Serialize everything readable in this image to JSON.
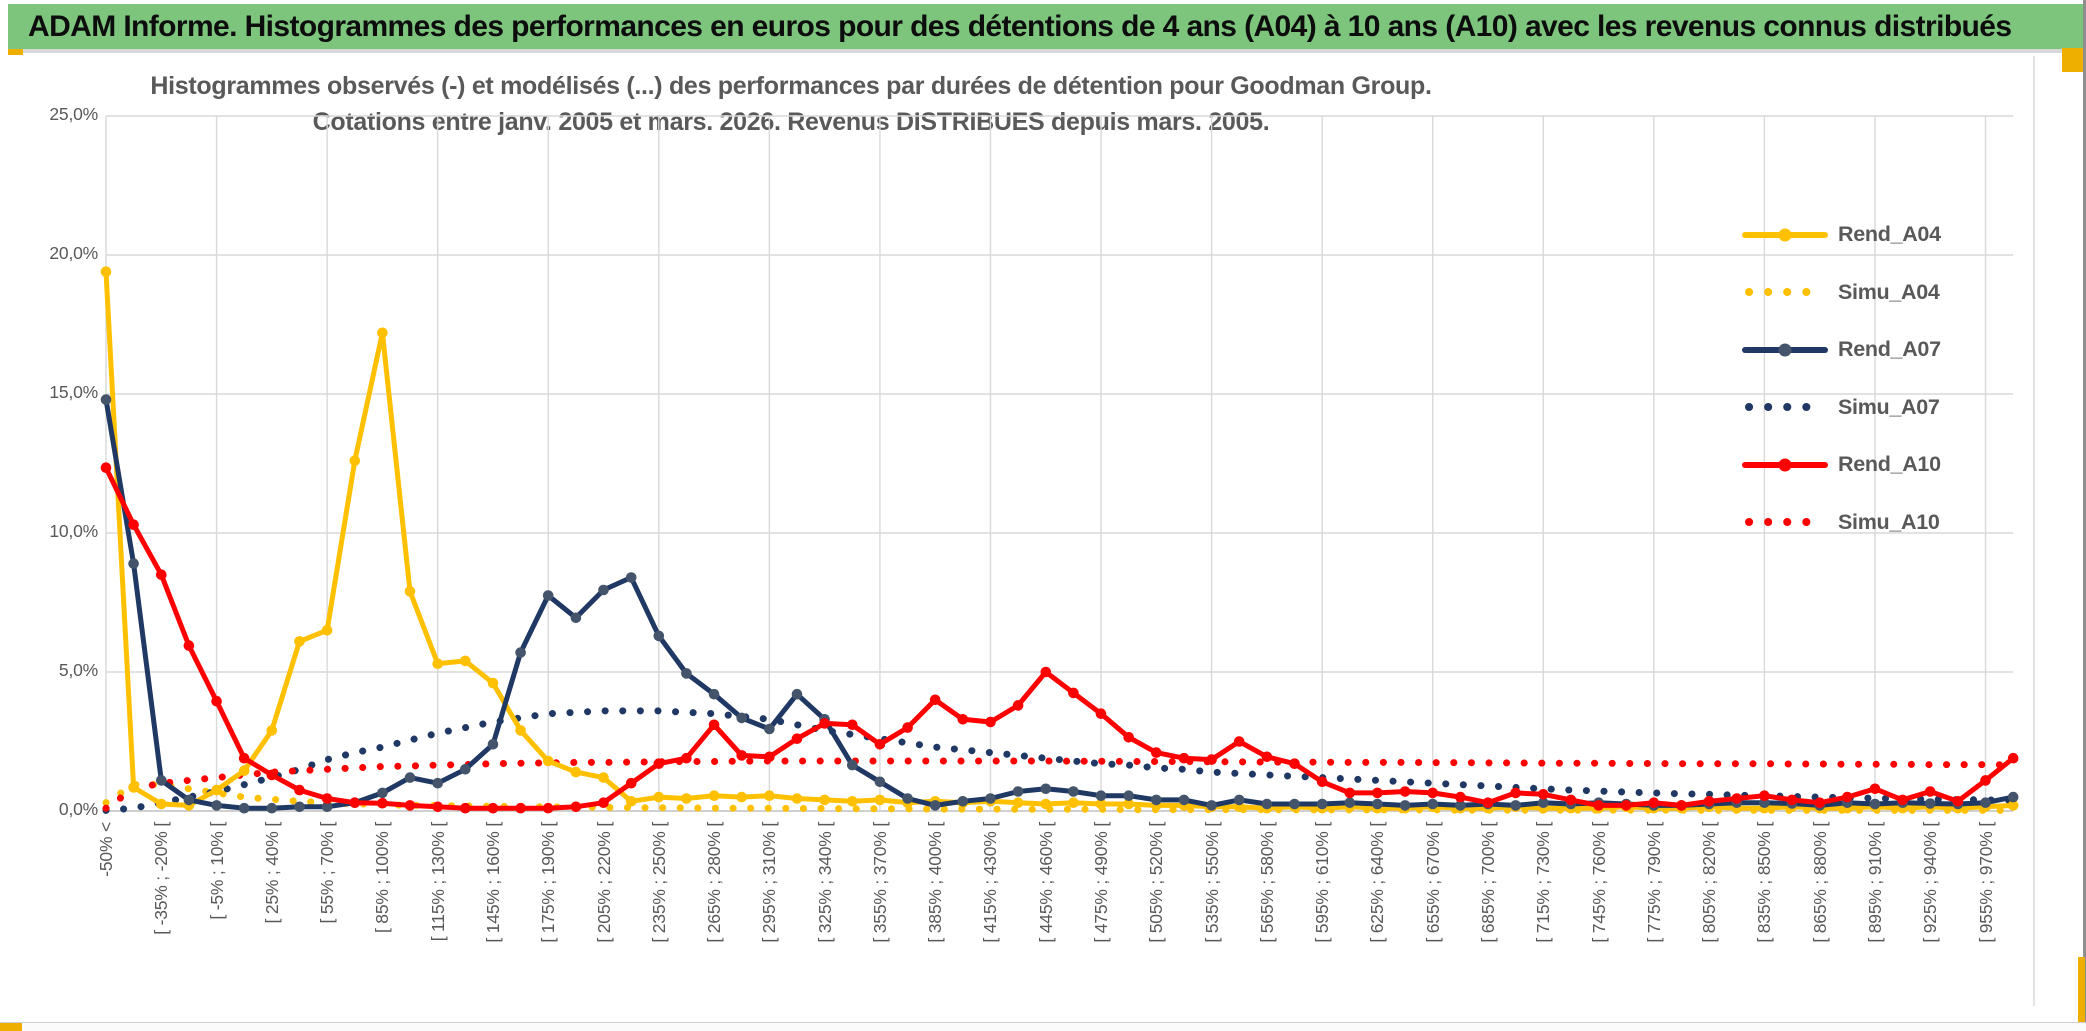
{
  "header": {
    "title": "ADAM Informe. Histogrammes des performances en euros pour des détentions de 4 ans (A04) à 10 ans (A10) avec les revenus connus distribués"
  },
  "colors": {
    "header_bg": "#7DC57D",
    "accent_gold": "#EFAF00",
    "text_gray": "#595959",
    "grid": "#D9D9D9",
    "axis_line": "#C0C0C0",
    "series_gold": "#FFC000",
    "series_navy": "#1F3864",
    "navy_marker": "#44546A",
    "series_red": "#FF0000"
  },
  "chart_data": {
    "type": "line",
    "title_line1": "Histogrammes observés (-) et modélisés (...) des performances par durées de détention pour Goodman Group.",
    "title_line2": "Cotations entre janv. 2005 et mars. 2026. Revenus DISTRIBUES depuis mars. 2005.",
    "ylim": [
      0,
      25
    ],
    "grid": true,
    "legend_position": "right",
    "y_ticks": [
      {
        "label": "0,0%",
        "value": 0
      },
      {
        "label": "5,0%",
        "value": 5
      },
      {
        "label": "10,0%",
        "value": 10
      },
      {
        "label": "15,0%",
        "value": 15
      },
      {
        "label": "20,0%",
        "value": 20
      },
      {
        "label": "25,0%",
        "value": 25
      }
    ],
    "x_labels": [
      "-50% <",
      "[ -35% ; -20% [",
      "[ -5% ; 10% [",
      "[ 25% ; 40% [",
      "[ 55% ; 70% [",
      "[ 85% ; 100% [",
      "[ 115% ; 130% [",
      "[ 145% ; 160% [",
      "[ 175% ; 190% [",
      "[ 205% ; 220% [",
      "[ 235% ; 250% [",
      "[ 265% ; 280% [",
      "[ 295% ; 310% [",
      "[ 325% ; 340% [",
      "[ 355% ; 370% [",
      "[ 385% ; 400% [",
      "[ 415% ; 430% [",
      "[ 445% ; 460% [",
      "[ 475% ; 490% [",
      "[ 505% ; 520% [",
      "[ 535% ; 550% [",
      "[ 565% ; 580% [",
      "[ 595% ; 610% [",
      "[ 625% ; 640% [",
      "[ 655% ; 670% [",
      "[ 685% ; 700% [",
      "[ 715% ; 730% [",
      "[ 745% ; 760% [",
      "[ 775% ; 790% [",
      "[ 805% ; 820% [",
      "[ 835% ; 850% [",
      "[ 865% ; 880% [",
      "[ 895% ; 910% [",
      "[ 925% ; 940% [",
      "[ 955% ; 970% ["
    ],
    "points_per_label": 2,
    "note": "70 points per series (15%-wide bins); axis labels are shown for every other bin",
    "series": [
      {
        "name": "Rend_A04",
        "style": "solid",
        "color": "#FFC000",
        "marker_color": "#FFC000",
        "values": [
          19.4,
          0.85,
          0.25,
          0.2,
          0.75,
          1.45,
          2.9,
          6.1,
          6.5,
          12.6,
          17.2,
          7.9,
          5.3,
          5.4,
          4.6,
          2.9,
          1.8,
          1.4,
          1.2,
          0.35,
          0.5,
          0.45,
          0.55,
          0.5,
          0.55,
          0.45,
          0.4,
          0.35,
          0.4,
          0.3,
          0.35,
          0.3,
          0.35,
          0.3,
          0.25,
          0.3,
          0.25,
          0.25,
          0.2,
          0.2,
          0.15,
          0.15,
          0.1,
          0.15,
          0.1,
          0.15,
          0.1,
          0.1,
          0.15,
          0.1,
          0.1,
          0.15,
          0.1,
          0.1,
          0.1,
          0.15,
          0.1,
          0.1,
          0.15,
          0.1,
          0.1,
          0.15,
          0.1,
          0.1,
          0.15,
          0.1,
          0.15,
          0.1,
          0.15,
          0.2
        ]
      },
      {
        "name": "Simu_A04",
        "style": "dotted",
        "color": "#FFC000",
        "values": [
          0.3,
          0.95,
          0.95,
          0.8,
          0.65,
          0.5,
          0.42,
          0.35,
          0.3,
          0.26,
          0.23,
          0.2,
          0.2,
          0.18,
          0.17,
          0.16,
          0.15,
          0.14,
          0.13,
          0.12,
          0.12,
          0.11,
          0.1,
          0.1,
          0.1,
          0.09,
          0.09,
          0.08,
          0.08,
          0.08,
          0.07,
          0.07,
          0.07,
          0.06,
          0.06,
          0.06,
          0.06,
          0.05,
          0.05,
          0.05,
          0.05,
          0.05,
          0.05,
          0.04,
          0.04,
          0.04,
          0.04,
          0.04,
          0.04,
          0.03,
          0.03,
          0.03,
          0.03,
          0.03,
          0.03,
          0.03,
          0.03,
          0.03,
          0.02,
          0.02,
          0.02,
          0.02,
          0.02,
          0.02,
          0.02,
          0.02,
          0.02,
          0.02,
          0.02,
          0.02
        ]
      },
      {
        "name": "Rend_A07",
        "style": "solid",
        "color": "#1F3864",
        "marker_color": "#44546A",
        "values": [
          14.8,
          8.9,
          1.1,
          0.4,
          0.2,
          0.1,
          0.1,
          0.15,
          0.15,
          0.3,
          0.65,
          1.2,
          1.0,
          1.5,
          2.4,
          5.7,
          7.75,
          6.95,
          7.95,
          8.4,
          6.3,
          4.95,
          4.2,
          3.35,
          2.95,
          4.2,
          3.3,
          1.65,
          1.05,
          0.45,
          0.2,
          0.35,
          0.45,
          0.7,
          0.8,
          0.7,
          0.55,
          0.55,
          0.4,
          0.4,
          0.2,
          0.4,
          0.25,
          0.25,
          0.25,
          0.3,
          0.25,
          0.2,
          0.25,
          0.2,
          0.25,
          0.2,
          0.3,
          0.25,
          0.3,
          0.25,
          0.2,
          0.2,
          0.25,
          0.3,
          0.3,
          0.27,
          0.2,
          0.3,
          0.25,
          0.3,
          0.27,
          0.25,
          0.3,
          0.5
        ]
      },
      {
        "name": "Simu_A07",
        "style": "dotted",
        "color": "#1F3864",
        "values": [
          0.02,
          0.1,
          0.3,
          0.5,
          0.7,
          0.95,
          1.2,
          1.5,
          1.85,
          2.1,
          2.3,
          2.55,
          2.8,
          3.0,
          3.2,
          3.35,
          3.5,
          3.55,
          3.6,
          3.6,
          3.6,
          3.55,
          3.5,
          3.4,
          3.3,
          3.1,
          2.9,
          2.75,
          2.6,
          2.45,
          2.3,
          2.2,
          2.1,
          2.0,
          1.9,
          1.8,
          1.7,
          1.65,
          1.55,
          1.5,
          1.4,
          1.35,
          1.3,
          1.25,
          1.2,
          1.15,
          1.1,
          1.05,
          1.0,
          0.95,
          0.9,
          0.85,
          0.8,
          0.75,
          0.72,
          0.68,
          0.65,
          0.62,
          0.6,
          0.57,
          0.55,
          0.52,
          0.5,
          0.48,
          0.46,
          0.44,
          0.42,
          0.41,
          0.4,
          0.38
        ]
      },
      {
        "name": "Rend_A10",
        "style": "solid",
        "color": "#FF0000",
        "marker_color": "#FF0000",
        "values": [
          12.35,
          10.3,
          8.5,
          5.95,
          3.95,
          1.9,
          1.3,
          0.75,
          0.45,
          0.3,
          0.28,
          0.2,
          0.15,
          0.1,
          0.1,
          0.1,
          0.1,
          0.15,
          0.3,
          1.0,
          1.7,
          1.9,
          3.1,
          2.0,
          1.95,
          2.6,
          3.15,
          3.1,
          2.4,
          3.0,
          4.0,
          3.3,
          3.2,
          3.8,
          5.0,
          4.25,
          3.5,
          2.65,
          2.1,
          1.9,
          1.85,
          2.5,
          1.95,
          1.7,
          1.05,
          0.65,
          0.65,
          0.7,
          0.65,
          0.5,
          0.3,
          0.65,
          0.6,
          0.4,
          0.2,
          0.2,
          0.3,
          0.2,
          0.35,
          0.45,
          0.55,
          0.4,
          0.3,
          0.5,
          0.8,
          0.4,
          0.7,
          0.35,
          1.1,
          1.9
        ]
      },
      {
        "name": "Simu_A10",
        "style": "dotted",
        "color": "#FF0000",
        "values": [
          0.1,
          0.8,
          1.0,
          1.1,
          1.2,
          1.3,
          1.4,
          1.45,
          1.5,
          1.55,
          1.6,
          1.62,
          1.65,
          1.67,
          1.7,
          1.72,
          1.73,
          1.75,
          1.75,
          1.76,
          1.77,
          1.78,
          1.78,
          1.79,
          1.8,
          1.8,
          1.8,
          1.8,
          1.8,
          1.8,
          1.8,
          1.8,
          1.8,
          1.8,
          1.8,
          1.79,
          1.79,
          1.78,
          1.78,
          1.78,
          1.77,
          1.77,
          1.76,
          1.76,
          1.76,
          1.75,
          1.75,
          1.75,
          1.74,
          1.74,
          1.73,
          1.73,
          1.72,
          1.72,
          1.72,
          1.71,
          1.71,
          1.7,
          1.7,
          1.7,
          1.7,
          1.69,
          1.69,
          1.68,
          1.68,
          1.68,
          1.67,
          1.67,
          1.67,
          1.66
        ]
      }
    ],
    "legend": [
      "Rend_A04",
      "Simu_A04",
      "Rend_A07",
      "Simu_A07",
      "Rend_A10",
      "Simu_A10"
    ]
  }
}
